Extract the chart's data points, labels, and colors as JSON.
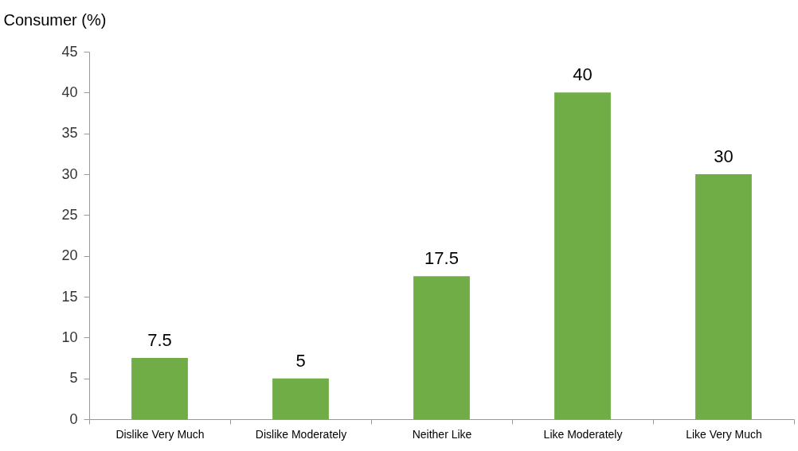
{
  "chart_data": {
    "type": "bar",
    "ylabel": "Consumer (%)",
    "categories": [
      "Dislike Very Much",
      "Dislike Moderately",
      "Neither Like",
      "Like Moderately",
      "Like Very Much"
    ],
    "values": [
      7.5,
      5,
      17.5,
      40,
      30
    ],
    "color": "#70ad47",
    "ylim": [
      0,
      45
    ],
    "yticks": [
      0,
      5,
      10,
      15,
      20,
      25,
      30,
      35,
      40,
      45
    ],
    "grid": false,
    "data_labels": true
  }
}
